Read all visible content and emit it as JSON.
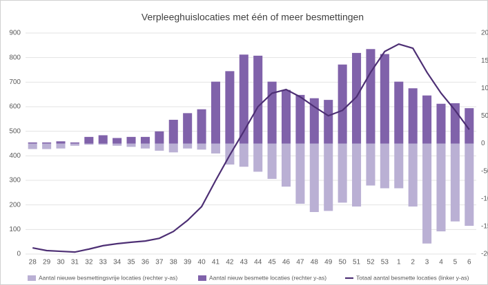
{
  "chart_data": {
    "type": "bar-line",
    "title": "Verpleeghuislocaties met één of meer besmettingen",
    "categories": [
      "28",
      "29",
      "30",
      "31",
      "32",
      "33",
      "34",
      "35",
      "36",
      "37",
      "38",
      "39",
      "40",
      "41",
      "42",
      "43",
      "44",
      "45",
      "46",
      "47",
      "48",
      "49",
      "50",
      "51",
      "52",
      "53",
      "1",
      "2",
      "3",
      "4",
      "5",
      "6"
    ],
    "series": [
      {
        "name": "Aantal nieuwe besmettingsvrije locaties (rechter y-as)",
        "color": "#bab0d4",
        "axis": "y2",
        "kind": "bar",
        "values": [
          -10,
          -10,
          -9,
          -4,
          -2,
          -2,
          -4,
          -6,
          -9,
          -13,
          -16,
          -9,
          -11,
          -18,
          -38,
          -42,
          -51,
          -64,
          -78,
          -109,
          -124,
          -122,
          -107,
          -114,
          -76,
          -81,
          -81,
          -114,
          -181,
          -159,
          -141,
          -149
        ]
      },
      {
        "name": "Aantal nieuw besmette locaties (rechter y-as)",
        "color": "#8062aa",
        "axis": "y2",
        "kind": "bar",
        "values": [
          2,
          2,
          4,
          2,
          12,
          15,
          10,
          12,
          12,
          22,
          43,
          55,
          62,
          112,
          131,
          161,
          159,
          112,
          97,
          88,
          82,
          79,
          143,
          164,
          171,
          162,
          112,
          100,
          87,
          72,
          73,
          64
        ]
      },
      {
        "name": "Totaal aantal besmette locaties (linker y-as)",
        "color": "#4d2f74",
        "axis": "y",
        "kind": "line",
        "values": [
          25,
          14,
          11,
          8,
          20,
          34,
          42,
          48,
          53,
          64,
          92,
          137,
          193,
          300,
          403,
          500,
          600,
          655,
          670,
          640,
          600,
          563,
          585,
          640,
          740,
          825,
          855,
          838,
          740,
          655,
          585,
          507
        ]
      }
    ],
    "ylim": [
      0,
      900
    ],
    "yticks": [
      0,
      100,
      200,
      300,
      400,
      500,
      600,
      700,
      800,
      900
    ],
    "y2lim": [
      -200,
      200
    ],
    "y2ticks": [
      -200,
      -150,
      -100,
      -50,
      0,
      50,
      100,
      150,
      200
    ],
    "grid": true,
    "legend": "bottom"
  }
}
